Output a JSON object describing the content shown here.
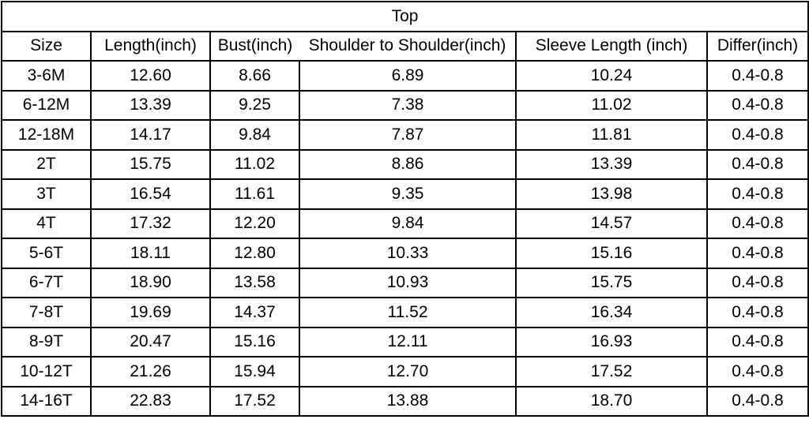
{
  "title": "Top",
  "headers": [
    "Size",
    "Length(inch)",
    "Bust(inch)",
    "Shoulder to Shoulder(inch)",
    "Sleeve Length (inch)",
    "Differ(inch)"
  ],
  "rows": [
    [
      "3-6M",
      "12.60",
      "8.66",
      "6.89",
      "10.24",
      "0.4-0.8"
    ],
    [
      "6-12M",
      "13.39",
      "9.25",
      "7.38",
      "11.02",
      "0.4-0.8"
    ],
    [
      "12-18M",
      "14.17",
      "9.84",
      "7.87",
      "11.81",
      "0.4-0.8"
    ],
    [
      "2T",
      "15.75",
      "11.02",
      "8.86",
      "13.39",
      "0.4-0.8"
    ],
    [
      "3T",
      "16.54",
      "11.61",
      "9.35",
      "13.98",
      "0.4-0.8"
    ],
    [
      "4T",
      "17.32",
      "12.20",
      "9.84",
      "14.57",
      "0.4-0.8"
    ],
    [
      "5-6T",
      "18.11",
      "12.80",
      "10.33",
      "15.16",
      "0.4-0.8"
    ],
    [
      "6-7T",
      "18.90",
      "13.58",
      "10.93",
      "15.75",
      "0.4-0.8"
    ],
    [
      "7-8T",
      "19.69",
      "14.37",
      "11.52",
      "16.34",
      "0.4-0.8"
    ],
    [
      "8-9T",
      "20.47",
      "15.16",
      "12.11",
      "16.93",
      "0.4-0.8"
    ],
    [
      "10-12T",
      "21.26",
      "15.94",
      "12.70",
      "17.52",
      "0.4-0.8"
    ],
    [
      "14-16T",
      "22.83",
      "17.52",
      "13.88",
      "18.70",
      "0.4-0.8"
    ]
  ]
}
